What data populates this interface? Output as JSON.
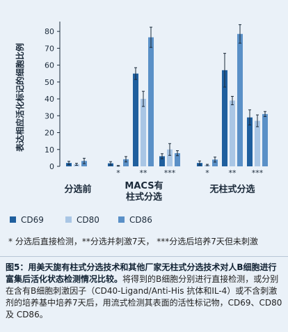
{
  "chart_data": {
    "type": "bar",
    "ylabel": "表达相应活化标记的细胞比例",
    "ylim": [
      0,
      85
    ],
    "yticks": [
      0,
      10,
      20,
      30,
      40,
      50,
      60,
      70,
      80
    ],
    "grid": false,
    "legend_position": "bottom",
    "groups": [
      {
        "label": "分选前",
        "bars": [
          {
            "series": "CD69",
            "value": 2.0,
            "err": 1.0
          },
          {
            "series": "CD80",
            "value": 1.2,
            "err": 0.6
          },
          {
            "series": "CD86",
            "value": 3.2,
            "err": 1.6
          }
        ]
      },
      {
        "label": "MACS有\n柱式分选",
        "subgroups": [
          {
            "mark": "*",
            "bars": [
              {
                "series": "CD69",
                "value": 1.8,
                "err": 1.0
              },
              {
                "series": "CD80",
                "value": 0.3,
                "err": 0.2
              },
              {
                "series": "CD86",
                "value": 4.2,
                "err": 1.6
              }
            ]
          },
          {
            "mark": "**",
            "bars": [
              {
                "series": "CD69",
                "value": 55.0,
                "err": 3.5
              },
              {
                "series": "CD80",
                "value": 40.0,
                "err": 4.5
              },
              {
                "series": "CD86",
                "value": 76.5,
                "err": 6.0
              }
            ]
          },
          {
            "mark": "***",
            "bars": [
              {
                "series": "CD69",
                "value": 6.0,
                "err": 1.5
              },
              {
                "series": "CD80",
                "value": 10.0,
                "err": 3.5
              },
              {
                "series": "CD86",
                "value": 7.8,
                "err": 1.5
              }
            ]
          }
        ]
      },
      {
        "label": "无柱式分选",
        "subgroups": [
          {
            "mark": "*",
            "bars": [
              {
                "series": "CD69",
                "value": 2.0,
                "err": 1.2
              },
              {
                "series": "CD80",
                "value": 0.8,
                "err": 0.4
              },
              {
                "series": "CD86",
                "value": 4.0,
                "err": 1.5
              }
            ]
          },
          {
            "mark": "**",
            "bars": [
              {
                "series": "CD69",
                "value": 57.0,
                "err": 10.0
              },
              {
                "series": "CD80",
                "value": 39.0,
                "err": 2.5
              },
              {
                "series": "CD86",
                "value": 78.5,
                "err": 5.5
              }
            ]
          },
          {
            "mark": "***",
            "bars": [
              {
                "series": "CD69",
                "value": 29.0,
                "err": 4.5
              },
              {
                "series": "CD80",
                "value": 27.0,
                "err": 3.5
              },
              {
                "series": "CD86",
                "value": 31.0,
                "err": 1.5
              }
            ]
          }
        ]
      }
    ],
    "series": [
      {
        "name": "CD69",
        "color": "#1f5f9e"
      },
      {
        "name": "CD80",
        "color": "#a9c6e5"
      },
      {
        "name": "CD86",
        "color": "#5a90c7"
      }
    ]
  },
  "note": "* 分选后直接检测，**分选并刺激7天，  ***分选后培养7天但未刺激",
  "caption": {
    "bold": "图5：用美天旎有柱式分选技术和其他厂家无柱式分选技术对人B细胞进行富集后活化状态检测情况比较。",
    "text": "将得到的B细胞分别进行直接检测，或分别在含有B细胞刺激因子（CD40-Ligand/Anti-His 抗体和IL-4）或不含刺激剂的培养基中培养7天后，用流式检测其表面的活性标记物，CD69、CD80及 CD86。"
  }
}
